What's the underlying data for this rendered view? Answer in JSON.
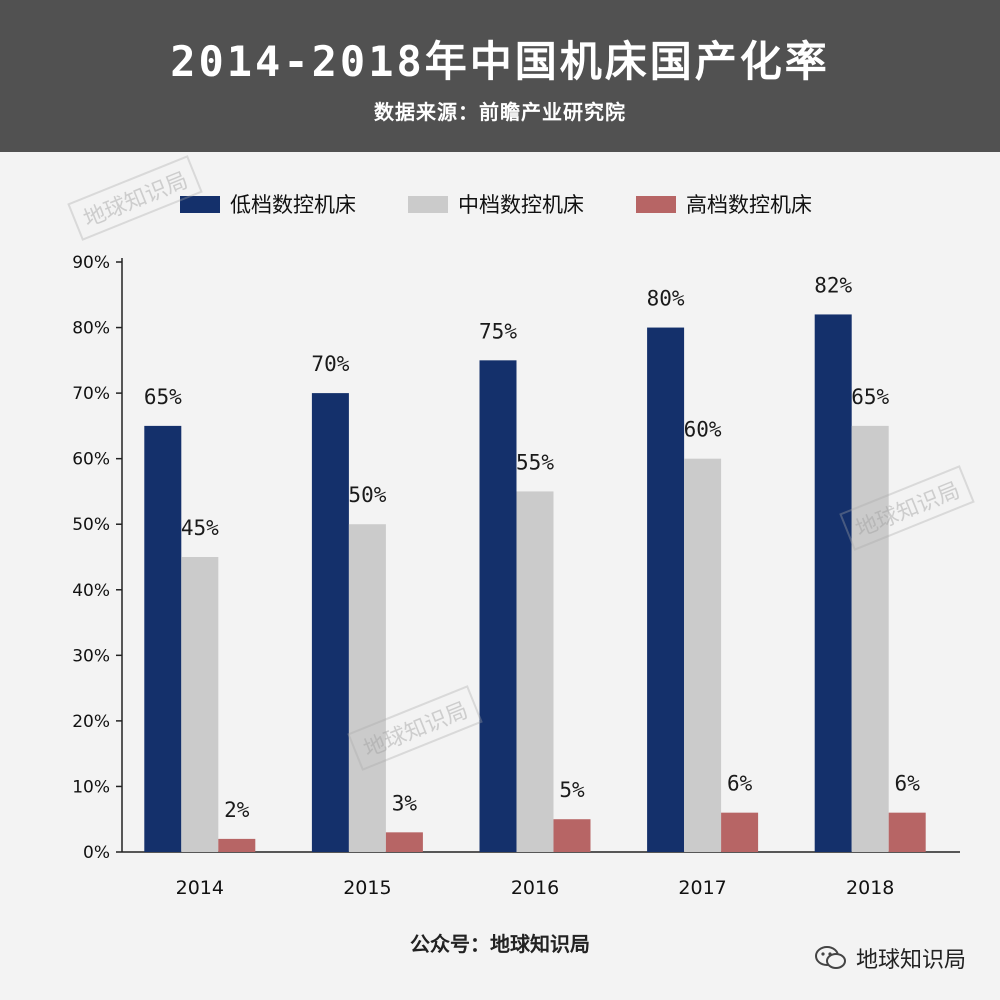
{
  "header": {
    "title": "2014-2018年中国机床国产化率",
    "subtitle": "数据来源：前瞻产业研究院"
  },
  "colors": {
    "header_bg": "#515151",
    "low": "#14306b",
    "mid": "#cbcbcb",
    "high": "#b76565"
  },
  "chart_data": {
    "type": "bar",
    "title": "2014-2018年中国机床国产化率",
    "categories": [
      "2014",
      "2015",
      "2016",
      "2017",
      "2018"
    ],
    "series": [
      {
        "name": "低档数控机床",
        "values": [
          65,
          70,
          75,
          80,
          82
        ],
        "labels": [
          "65%",
          "70%",
          "75%",
          "80%",
          "82%"
        ]
      },
      {
        "name": "中档数控机床",
        "values": [
          45,
          50,
          55,
          60,
          65
        ],
        "labels": [
          "45%",
          "50%",
          "55%",
          "60%",
          "65%"
        ]
      },
      {
        "name": "高档数控机床",
        "values": [
          2,
          3,
          5,
          6,
          6
        ],
        "labels": [
          "2%",
          "3%",
          "5%",
          "6%",
          "6%"
        ]
      }
    ],
    "yticks": [
      "0%",
      "10%",
      "20%",
      "30%",
      "40%",
      "50%",
      "60%",
      "70%",
      "80%",
      "90%"
    ],
    "ylim": [
      0,
      90
    ],
    "legend_position": "top",
    "grid": false
  },
  "footer": {
    "text": "公众号：地球知识局"
  },
  "brand": {
    "text": "地球知识局",
    "icon": "wechat-icon"
  },
  "watermark": {
    "text": "地球知识局"
  }
}
